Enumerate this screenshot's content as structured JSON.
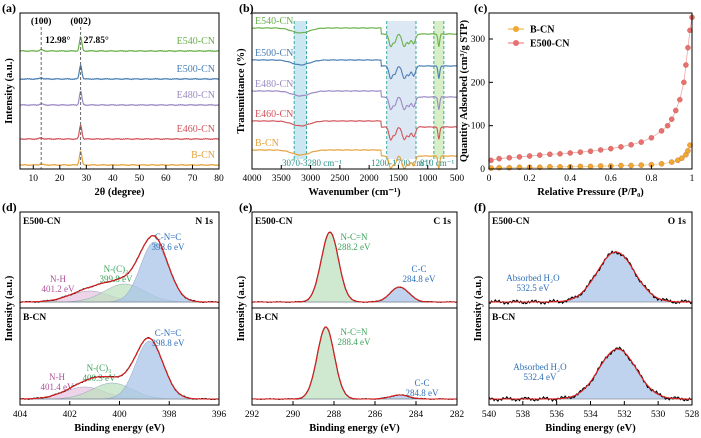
{
  "chart_data": [
    {
      "panel": "(a)",
      "type": "line",
      "xlabel": "2θ (degree)",
      "ylabel": "Intensity (a.u.)",
      "xlim": [
        5,
        80
      ],
      "xticks": [
        10,
        20,
        30,
        40,
        50,
        60,
        70,
        80
      ],
      "series_names": [
        "E540-CN",
        "E500-CN",
        "E480-CN",
        "E460-CN",
        "B-CN"
      ],
      "series_colors": [
        "#6ab04c",
        "#4a7fb5",
        "#9b8ac4",
        "#d1565c",
        "#e6a23c"
      ],
      "offsets": [
        4,
        3,
        2,
        1,
        0
      ],
      "peaks": [
        {
          "position": 12.98,
          "label": "12.98°",
          "plane": "(100)"
        },
        {
          "position": 27.85,
          "label": "27.85°",
          "plane": "(002)"
        }
      ]
    },
    {
      "panel": "(b)",
      "type": "line",
      "xlabel": "Wavenumber (cm⁻¹)",
      "ylabel": "Transmittance (%)",
      "xlim": [
        4000,
        500
      ],
      "xticks": [
        4000,
        3500,
        3000,
        2500,
        2000,
        1500,
        1000,
        500
      ],
      "series_names": [
        "E540-CN",
        "E500-CN",
        "E480-CN",
        "E460-CN",
        "B-CN"
      ],
      "series_colors": [
        "#6ab04c",
        "#4a7fb5",
        "#9b8ac4",
        "#d1565c",
        "#e6a23c"
      ],
      "bands": [
        {
          "range": [
            3070,
            3280
          ],
          "label": "3070-3280 cm⁻¹",
          "color": "#a8d8ea"
        },
        {
          "range": [
            1200,
            1700
          ],
          "label": "1200-1700 cm⁻¹",
          "color": "#c5d9ec"
        },
        {
          "range": [
            810,
            810
          ],
          "label": "810 cm⁻¹",
          "color": "#bde3a0"
        }
      ]
    },
    {
      "panel": "(c)",
      "type": "scatter",
      "xlabel": "Relative Pressure (P/P₀)",
      "ylabel": "Quantity Adsorbed (cm³/g STP)",
      "xlim": [
        0.0,
        1.0
      ],
      "ylim": [
        0,
        360
      ],
      "xticks": [
        0.0,
        0.2,
        0.4,
        0.6,
        0.8,
        1.0
      ],
      "yticks": [
        0,
        100,
        200,
        300
      ],
      "series": [
        {
          "name": "B-CN",
          "color": "#f0a830",
          "x": [
            0.01,
            0.05,
            0.1,
            0.15,
            0.2,
            0.25,
            0.3,
            0.35,
            0.4,
            0.45,
            0.5,
            0.55,
            0.6,
            0.65,
            0.7,
            0.75,
            0.8,
            0.85,
            0.9,
            0.93,
            0.95,
            0.97,
            0.98,
            0.99
          ],
          "y": [
            2,
            3,
            3,
            4,
            4,
            4,
            5,
            5,
            5,
            6,
            6,
            7,
            7,
            8,
            8,
            9,
            10,
            12,
            16,
            20,
            25,
            33,
            42,
            55
          ]
        },
        {
          "name": "E500-CN",
          "color": "#e87070",
          "x": [
            0.01,
            0.05,
            0.1,
            0.15,
            0.2,
            0.25,
            0.3,
            0.35,
            0.4,
            0.45,
            0.5,
            0.55,
            0.6,
            0.65,
            0.7,
            0.75,
            0.8,
            0.85,
            0.88,
            0.9,
            0.92,
            0.94,
            0.96,
            0.97,
            0.98,
            0.99,
            1.0
          ],
          "y": [
            20,
            24,
            26,
            28,
            30,
            32,
            34,
            35,
            37,
            39,
            41,
            44,
            47,
            51,
            56,
            62,
            72,
            88,
            100,
            115,
            135,
            160,
            200,
            240,
            280,
            320,
            350
          ]
        }
      ]
    },
    {
      "panel": "(d)",
      "type": "line",
      "element": "N 1s",
      "xlabel": "Binding energy (eV)",
      "ylabel": "Intensity (a.u.)",
      "xlim": [
        404,
        396
      ],
      "xticks": [
        404,
        402,
        400,
        398,
        396
      ],
      "subplots": [
        {
          "sample": "E500-CN",
          "peaks": [
            {
              "name": "C-N=C",
              "center": 398.6,
              "label": "398.6 eV",
              "color": "#a9c4e8",
              "textcolor": "#2e6fb7"
            },
            {
              "name": "N-(C)₃",
              "center": 399.8,
              "label": "399.8 eV",
              "color": "#bfe0c0",
              "textcolor": "#3aa35a"
            },
            {
              "name": "N-H",
              "center": 401.2,
              "label": "401.2 eV",
              "color": "#e8c6e0",
              "textcolor": "#b0509a"
            }
          ]
        },
        {
          "sample": "B-CN",
          "peaks": [
            {
              "name": "C-N=C",
              "center": 398.8,
              "label": "398.8 eV",
              "color": "#a9c4e8",
              "textcolor": "#2e6fb7"
            },
            {
              "name": "N-(C)₃",
              "center": 400.3,
              "label": "400.3 eV",
              "color": "#bfe0c0",
              "textcolor": "#3aa35a"
            },
            {
              "name": "N-H",
              "center": 401.4,
              "label": "401.4 eV",
              "color": "#e8c6e0",
              "textcolor": "#b0509a"
            }
          ]
        }
      ]
    },
    {
      "panel": "(e)",
      "type": "line",
      "element": "C 1s",
      "xlabel": "Binding energy (eV)",
      "ylabel": "Intensity (a.u.)",
      "xlim": [
        292,
        282
      ],
      "xticks": [
        292,
        290,
        288,
        286,
        284,
        282
      ],
      "subplots": [
        {
          "sample": "E500-CN",
          "peaks": [
            {
              "name": "N-C=N",
              "center": 288.2,
              "label": "288.2 eV",
              "color": "#bfe0c0",
              "textcolor": "#3aa35a"
            },
            {
              "name": "C-C",
              "center": 284.8,
              "label": "284.8 eV",
              "color": "#a9c4e8",
              "textcolor": "#2e6fb7"
            }
          ]
        },
        {
          "sample": "B-CN",
          "peaks": [
            {
              "name": "N-C=N",
              "center": 288.4,
              "label": "288.4 eV",
              "color": "#bfe0c0",
              "textcolor": "#3aa35a"
            },
            {
              "name": "C-C",
              "center": 284.8,
              "label": "284.8 eV",
              "color": "#a9c4e8",
              "textcolor": "#2e6fb7"
            }
          ]
        }
      ]
    },
    {
      "panel": "(f)",
      "type": "line",
      "element": "O 1s",
      "xlabel": "Binding energy (eV)",
      "ylabel": "Intensity (a.u.)",
      "xlim": [
        540,
        528
      ],
      "xticks": [
        540,
        538,
        536,
        534,
        532,
        530,
        528
      ],
      "subplots": [
        {
          "sample": "E500-CN",
          "peaks": [
            {
              "name": "Absorbed H₂O",
              "center": 532.5,
              "label": "532.5 eV",
              "color": "#a9c4e8",
              "textcolor": "#2e6fb7"
            }
          ]
        },
        {
          "sample": "B-CN",
          "peaks": [
            {
              "name": "Absorbed H₂O",
              "center": 532.4,
              "label": "532.4 eV",
              "color": "#a9c4e8",
              "textcolor": "#2e6fb7"
            }
          ]
        }
      ]
    }
  ]
}
